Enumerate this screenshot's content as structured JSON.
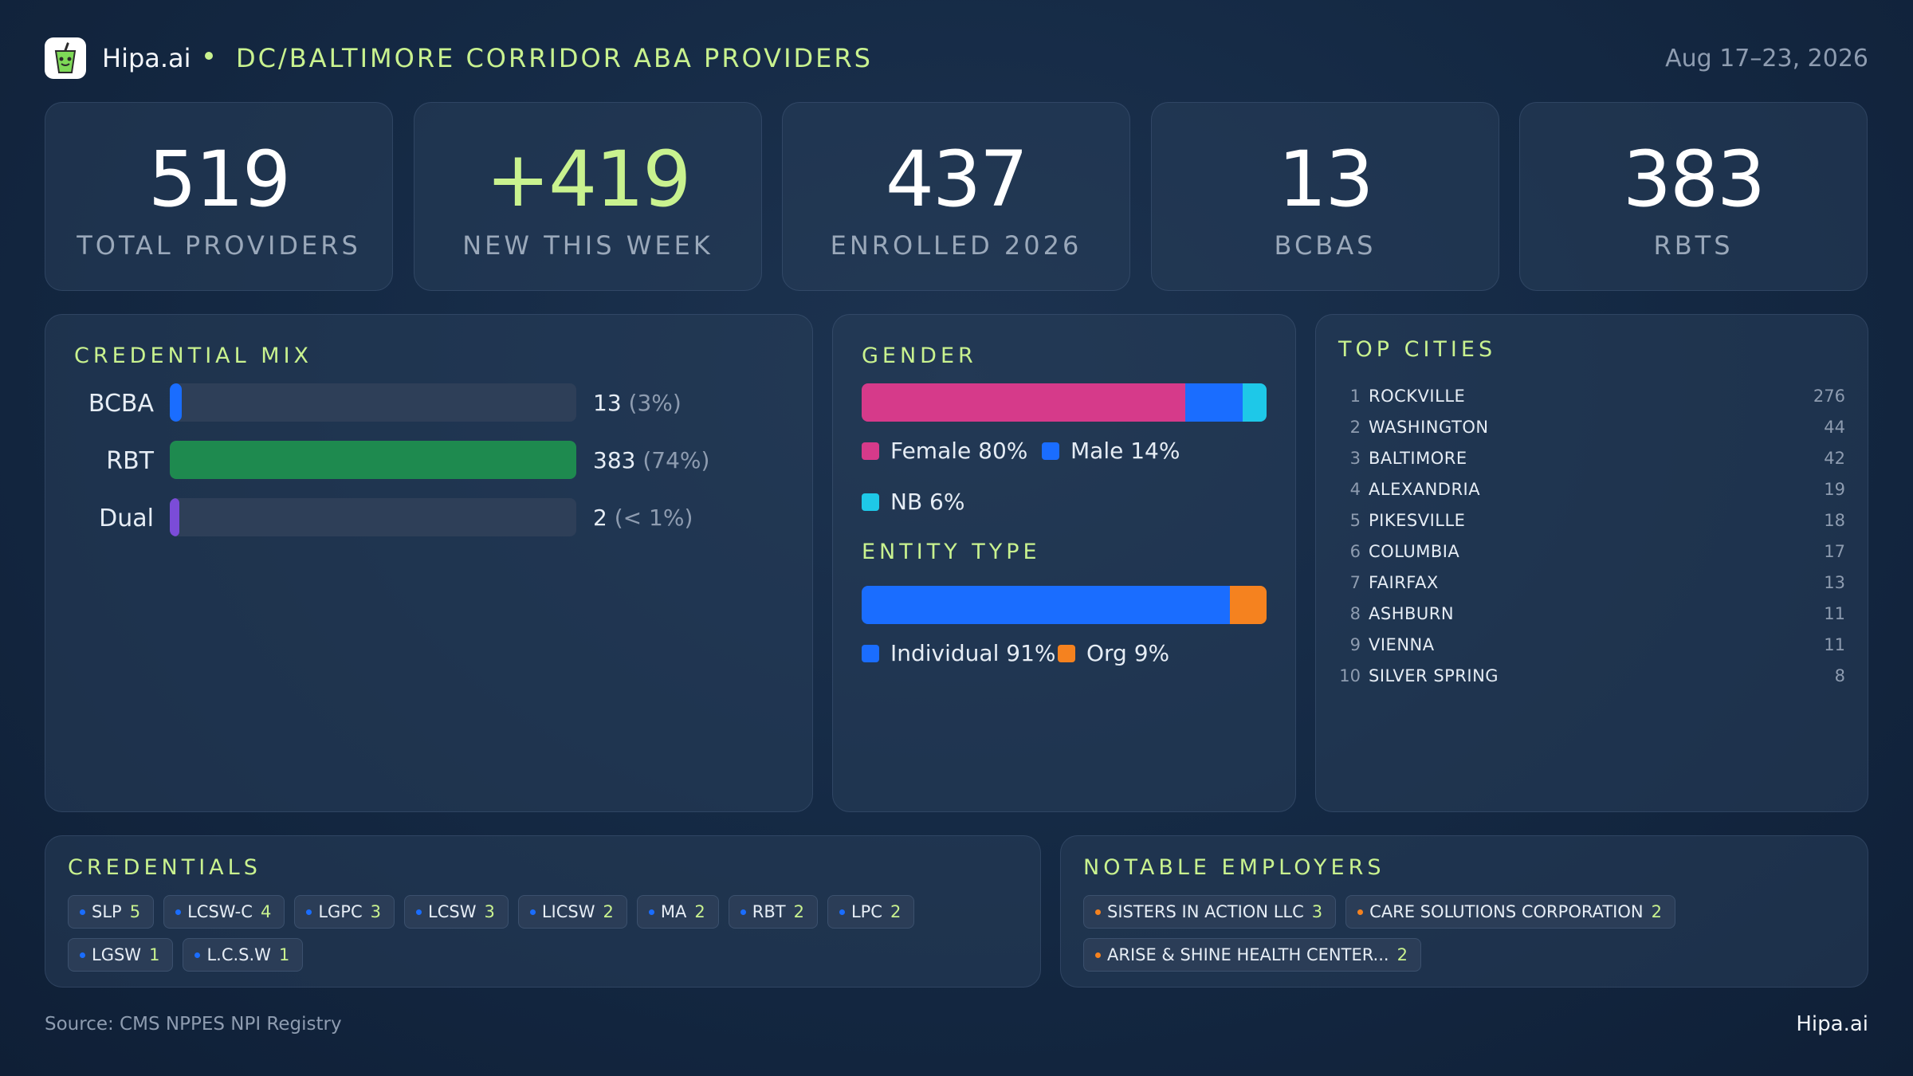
{
  "header": {
    "brand": "Hipa.ai",
    "region": "DC/BALTIMORE CORRIDOR ABA PROVIDERS",
    "date_range": "Aug 17–23, 2026"
  },
  "stats": [
    {
      "value": "519",
      "label": "TOTAL PROVIDERS",
      "accent": false
    },
    {
      "value": "+419",
      "label": "NEW THIS WEEK",
      "accent": true
    },
    {
      "value": "437",
      "label": "ENROLLED 2026",
      "accent": false
    },
    {
      "value": "13",
      "label": "BCBAS",
      "accent": false
    },
    {
      "value": "383",
      "label": "RBTS",
      "accent": false
    }
  ],
  "credential_mix": {
    "title": "CREDENTIAL MIX",
    "rows": [
      {
        "label": "BCBA",
        "value": "13",
        "pct": "(3%)",
        "fraction": 0.03,
        "color": "#1a6dff"
      },
      {
        "label": "RBT",
        "value": "383",
        "pct": "(74%)",
        "fraction": 1.0,
        "color": "#1e8a4f"
      },
      {
        "label": "Dual",
        "value": "2",
        "pct": "(< 1%)",
        "fraction": 0.006,
        "color": "#7b4cd8"
      }
    ]
  },
  "gender": {
    "title": "GENDER",
    "segments": [
      {
        "label": "Female 80%",
        "percent": 80,
        "color": "#d63a8a"
      },
      {
        "label": "Male 14%",
        "percent": 14,
        "color": "#1a6dff"
      },
      {
        "label": "NB 6%",
        "percent": 6,
        "color": "#1ec8e8"
      }
    ]
  },
  "entity_type": {
    "title": "ENTITY TYPE",
    "segments": [
      {
        "label": "Individual 91%",
        "percent": 91,
        "color": "#1a6dff"
      },
      {
        "label": "Org 9%",
        "percent": 9,
        "color": "#f5821f"
      }
    ]
  },
  "top_cities": {
    "title": "TOP CITIES",
    "items": [
      {
        "rank": "1",
        "name": "ROCKVILLE",
        "count": "276"
      },
      {
        "rank": "2",
        "name": "WASHINGTON",
        "count": "44"
      },
      {
        "rank": "3",
        "name": "BALTIMORE",
        "count": "42"
      },
      {
        "rank": "4",
        "name": "ALEXANDRIA",
        "count": "19"
      },
      {
        "rank": "5",
        "name": "PIKESVILLE",
        "count": "18"
      },
      {
        "rank": "6",
        "name": "COLUMBIA",
        "count": "17"
      },
      {
        "rank": "7",
        "name": "FAIRFAX",
        "count": "13"
      },
      {
        "rank": "8",
        "name": "ASHBURN",
        "count": "11"
      },
      {
        "rank": "9",
        "name": "VIENNA",
        "count": "11"
      },
      {
        "rank": "10",
        "name": "SILVER SPRING",
        "count": "8"
      }
    ]
  },
  "credentials": {
    "title": "CREDENTIALS",
    "dot_color": "#1a6dff",
    "items": [
      {
        "name": "SLP",
        "count": "5"
      },
      {
        "name": "LCSW-C",
        "count": "4"
      },
      {
        "name": "LGPC",
        "count": "3"
      },
      {
        "name": "LCSW",
        "count": "3"
      },
      {
        "name": "LICSW",
        "count": "2"
      },
      {
        "name": "MA",
        "count": "2"
      },
      {
        "name": "RBT",
        "count": "2"
      },
      {
        "name": "LPC",
        "count": "2"
      },
      {
        "name": "LGSW",
        "count": "1"
      },
      {
        "name": "L.C.S.W",
        "count": "1"
      }
    ]
  },
  "employers": {
    "title": "NOTABLE EMPLOYERS",
    "dot_color": "#f5821f",
    "items": [
      {
        "name": "SISTERS IN ACTION LLC",
        "count": "3"
      },
      {
        "name": "CARE SOLUTIONS CORPORATION",
        "count": "2"
      },
      {
        "name": "ARISE & SHINE HEALTH CENTER...",
        "count": "2"
      }
    ]
  },
  "footer": {
    "source": "Source: CMS NPPES NPI Registry",
    "brand": "Hipa.ai"
  },
  "chart_data": [
    {
      "type": "bar",
      "title": "CREDENTIAL MIX",
      "categories": [
        "BCBA",
        "RBT",
        "Dual"
      ],
      "values": [
        13,
        383,
        2
      ],
      "data_labels": [
        "13 (3%)",
        "383 (74%)",
        "2 (< 1%)"
      ]
    },
    {
      "type": "bar",
      "title": "GENDER",
      "categories": [
        "Female",
        "Male",
        "NB"
      ],
      "values": [
        80,
        14,
        6
      ]
    },
    {
      "type": "bar",
      "title": "ENTITY TYPE",
      "categories": [
        "Individual",
        "Org"
      ],
      "values": [
        91,
        9
      ]
    },
    {
      "type": "table",
      "title": "TOP CITIES",
      "categories": [
        "ROCKVILLE",
        "WASHINGTON",
        "BALTIMORE",
        "ALEXANDRIA",
        "PIKESVILLE",
        "COLUMBIA",
        "FAIRFAX",
        "ASHBURN",
        "VIENNA",
        "SILVER SPRING"
      ],
      "values": [
        276,
        44,
        42,
        19,
        18,
        17,
        13,
        11,
        11,
        8
      ]
    }
  ]
}
